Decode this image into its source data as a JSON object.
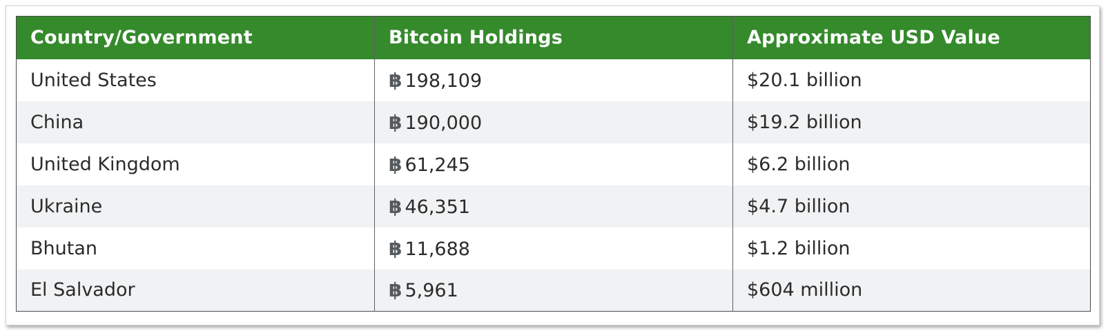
{
  "table": {
    "headers": [
      "Country/Government",
      "Bitcoin Holdings",
      "Approximate USD Value"
    ],
    "currency_symbol": "฿",
    "rows": [
      {
        "country": "United States",
        "holdings": "198,109",
        "usd": "$20.1 billion"
      },
      {
        "country": "China",
        "holdings": "190,000",
        "usd": "$19.2 billion"
      },
      {
        "country": "United Kingdom",
        "holdings": "61,245",
        "usd": "$6.2 billion"
      },
      {
        "country": "Ukraine",
        "holdings": "46,351",
        "usd": "$4.7 billion"
      },
      {
        "country": "Bhutan",
        "holdings": "11,688",
        "usd": "$1.2 billion"
      },
      {
        "country": "El Salvador",
        "holdings": "5,961",
        "usd": "$604 million"
      }
    ]
  },
  "colors": {
    "header_bg": "#358a2c",
    "header_text": "#ffffff",
    "row_alt_bg": "#f1f2f3",
    "text": "#2b2b2b"
  }
}
